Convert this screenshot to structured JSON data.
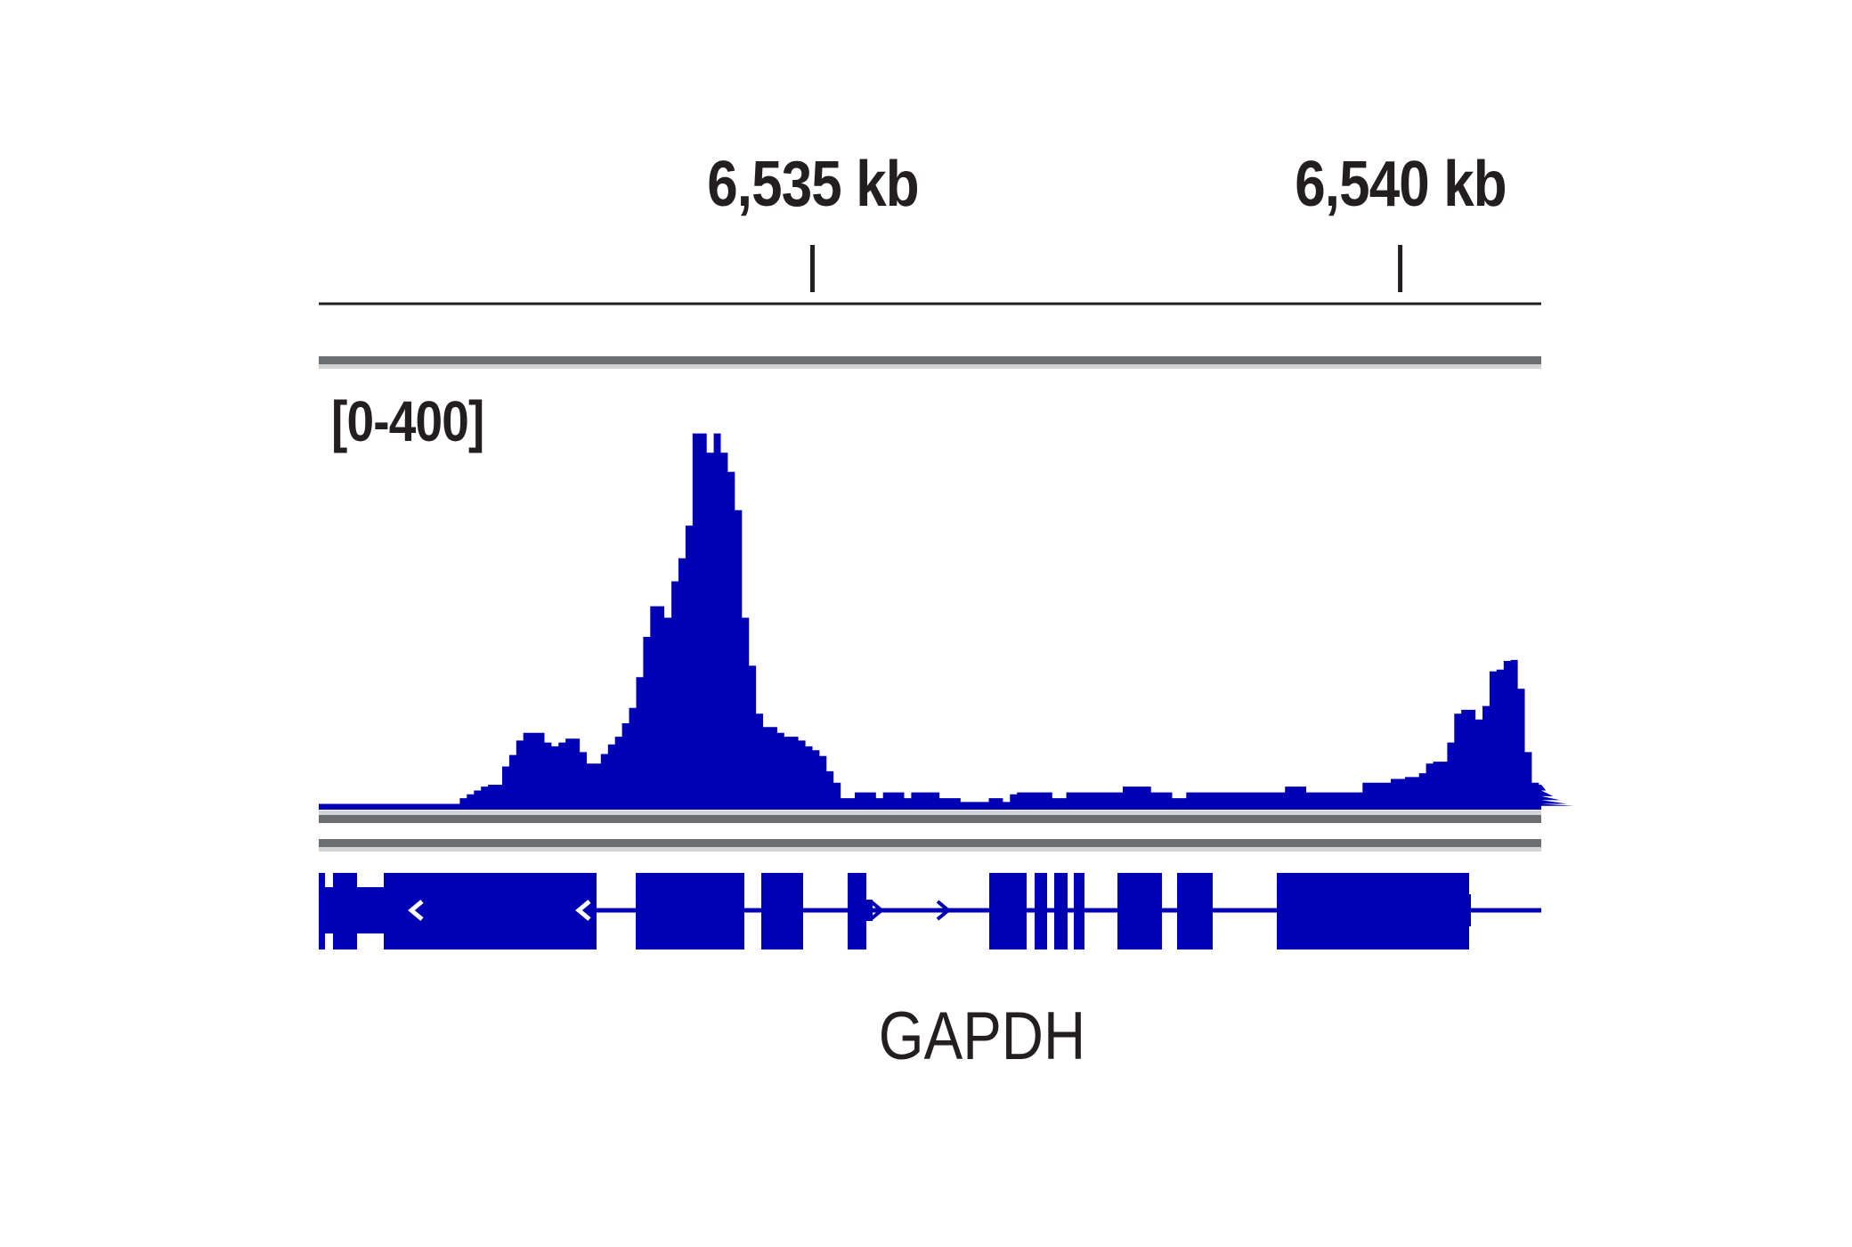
{
  "chart_data": {
    "type": "area",
    "ruler": {
      "ticks": [
        {
          "label": "6,535 kb",
          "kb": 6535
        },
        {
          "label": "6,540 kb",
          "kb": 6540
        }
      ]
    },
    "track": {
      "range_label": "[0-400]",
      "ylim": [
        0,
        400
      ],
      "color": "#0000b4",
      "xlim_kb": [
        6530.8,
        6541.2
      ],
      "bin_kb": 0.06,
      "values": [
        6,
        6,
        6,
        6,
        6,
        6,
        6,
        6,
        6,
        6,
        6,
        6,
        6,
        6,
        6,
        6,
        6,
        6,
        6,
        6,
        12,
        16,
        20,
        24,
        26,
        26,
        45,
        57,
        72,
        80,
        80,
        80,
        70,
        66,
        70,
        74,
        74,
        60,
        48,
        48,
        58,
        68,
        76,
        90,
        106,
        138,
        180,
        212,
        212,
        200,
        238,
        262,
        296,
        392,
        392,
        372,
        392,
        372,
        352,
        312,
        200,
        150,
        100,
        86,
        86,
        80,
        76,
        76,
        72,
        66,
        62,
        56,
        40,
        28,
        12,
        12,
        18,
        18,
        18,
        12,
        18,
        18,
        18,
        12,
        18,
        18,
        18,
        18,
        12,
        12,
        12,
        8,
        8,
        8,
        8,
        12,
        12,
        8,
        16,
        18,
        18,
        18,
        18,
        18,
        12,
        12,
        18,
        18,
        18,
        18,
        18,
        18,
        18,
        18,
        24,
        24,
        24,
        24,
        18,
        18,
        18,
        12,
        12,
        18,
        18,
        18,
        18,
        18,
        18,
        18,
        18,
        18,
        18,
        18,
        18,
        18,
        18,
        24,
        24,
        24,
        18,
        18,
        18,
        18,
        18,
        18,
        18,
        18,
        28,
        28,
        28,
        28,
        32,
        32,
        34,
        34,
        38,
        48,
        50,
        50,
        70,
        100,
        104,
        104,
        94,
        108,
        144,
        146,
        155,
        156,
        126,
        60,
        28,
        26,
        20,
        14,
        10,
        6,
        4
      ],
      "gene_label": "GAPDH"
    },
    "theme": {
      "ink": "#231f20",
      "signal": "#0000b4",
      "gene": "#0000b4",
      "separator_dark": "#6d6e71",
      "separator_light": "#d1d3d4"
    }
  }
}
